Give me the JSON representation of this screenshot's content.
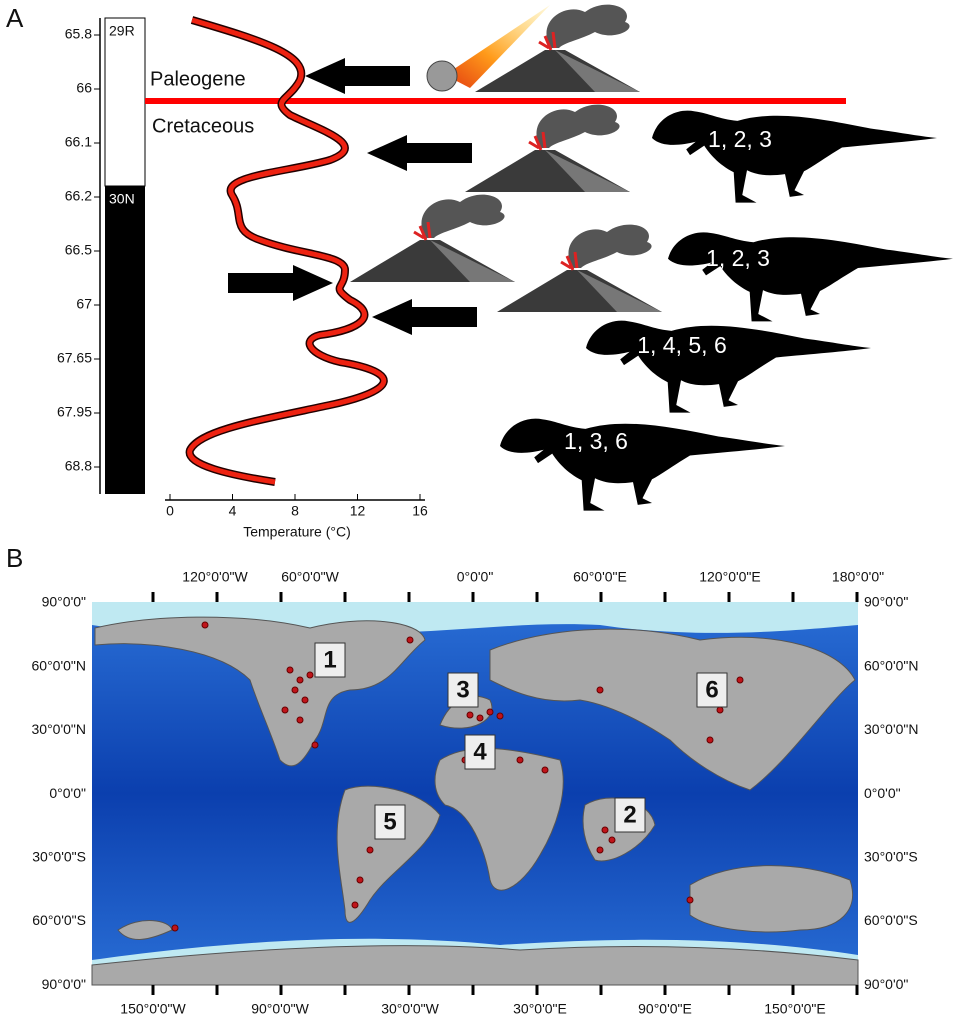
{
  "panel_a": {
    "label": "A",
    "age_ticks": [
      "65.8",
      "66",
      "66.1",
      "66.2",
      "66.5",
      "67",
      "67.65",
      "67.95",
      "68.8"
    ],
    "chrons": [
      "29R",
      "30N"
    ],
    "boundary": {
      "upper": "Paleogene",
      "lower": "Cretaceous"
    },
    "temperature_axis": {
      "ticks": [
        "0",
        "4",
        "8",
        "12",
        "16"
      ],
      "title": "Temperature (°C)"
    },
    "dinosaur_labels": [
      "1, 2, 3",
      "1, 2, 3",
      "1, 4, 5, 6",
      "1, 3, 6"
    ]
  },
  "panel_b": {
    "label": "B",
    "lon_top": [
      "120°0'0\"W",
      "60°0'0\"W",
      "0°0'0\"",
      "60°0'0\"E",
      "120°0'0\"E",
      "180°0'0\""
    ],
    "lon_bottom": [
      "150°0'0\"W",
      "90°0'0\"W",
      "30°0'0\"W",
      "30°0'0\"E",
      "90°0'0\"E",
      "150°0'0\"E"
    ],
    "lat": [
      "90°0'0\"",
      "60°0'0\"N",
      "30°0'0\"N",
      "0°0'0\"",
      "30°0'0\"S",
      "60°0'0\"S",
      "90°0'0\""
    ],
    "regions": [
      "1",
      "3",
      "4",
      "5",
      "2",
      "6"
    ]
  }
}
